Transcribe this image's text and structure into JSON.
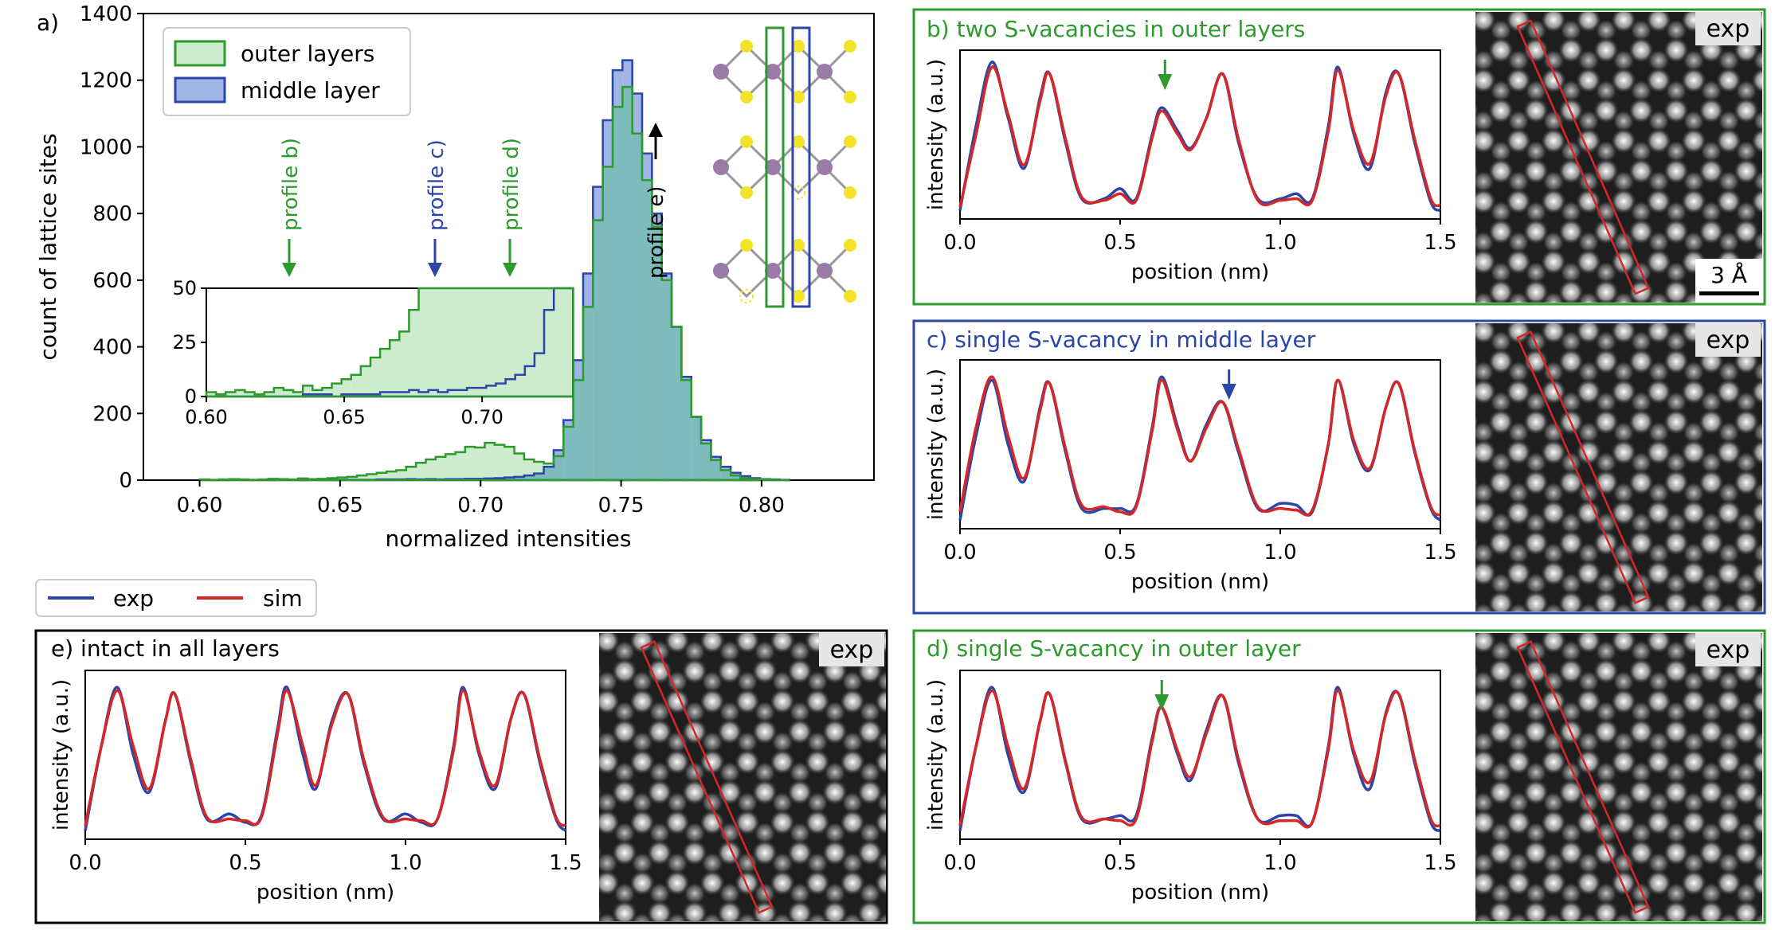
{
  "colors": {
    "outer": "#2e9a2e",
    "outer_fill": "#cdeccd",
    "middle": "#2b45a8",
    "middle_fill": "#9fb5e3",
    "overlap_fill": "#6fb3b8",
    "exp_line": "#2b45a8",
    "sim_line": "#d62728",
    "panel_frame_green": "#2e9a2e",
    "panel_frame_blue": "#2b45a8",
    "panel_frame_black": "#000000",
    "atom_mo": "#9a7ba8",
    "atom_s": "#f2e22a",
    "rect_red": "#d62728"
  },
  "legend": {
    "exp_label": "exp",
    "sim_label": "sim"
  },
  "panel_a": {
    "panel_label": "a)",
    "xlabel": "normalized intensities",
    "ylabel": "count of lattice sites",
    "legend": [
      "outer layers",
      "middle layer"
    ],
    "annotations": [
      "profile b)",
      "profile c)",
      "profile d)",
      "profile e)"
    ],
    "inset": {
      "x_ticks": [
        "0.60",
        "0.65",
        "0.70"
      ],
      "y_ticks": [
        "0",
        "25",
        "50"
      ]
    }
  },
  "panels": {
    "b": {
      "title": "b) two S-vacancies in outer layers",
      "image_label": "exp",
      "scalebar_label": "3 Å"
    },
    "c": {
      "title": "c) single S-vacancy in middle layer",
      "image_label": "exp"
    },
    "d": {
      "title": "d) single S-vacancy in outer layer",
      "image_label": "exp"
    },
    "e": {
      "title": "e) intact in all layers",
      "image_label": "exp"
    }
  },
  "chart_data": [
    {
      "type": "bar",
      "panel": "a",
      "xlabel": "normalized intensities",
      "ylabel": "count of lattice sites",
      "xlim": [
        0.58,
        0.84
      ],
      "ylim": [
        0,
        1400
      ],
      "x_ticks": [
        "0.60",
        "0.65",
        "0.70",
        "0.75",
        "0.80"
      ],
      "y_ticks": [
        "0",
        "200",
        "400",
        "600",
        "800",
        "1000",
        "1200",
        "1400"
      ],
      "bin_width": 0.0035,
      "series": [
        {
          "name": "outer layers",
          "bin_starts": [
            0.6,
            0.6035,
            0.607,
            0.6105,
            0.614,
            0.6175,
            0.621,
            0.6245,
            0.628,
            0.6315,
            0.635,
            0.6385,
            0.642,
            0.6455,
            0.649,
            0.6525,
            0.656,
            0.6595,
            0.663,
            0.6665,
            0.67,
            0.6735,
            0.677,
            0.6805,
            0.684,
            0.6875,
            0.691,
            0.6945,
            0.698,
            0.7015,
            0.705,
            0.7085,
            0.712,
            0.7155,
            0.719,
            0.7225,
            0.726,
            0.7295,
            0.733,
            0.7365,
            0.74,
            0.7435,
            0.747,
            0.7505,
            0.754,
            0.7575,
            0.761,
            0.7645,
            0.768,
            0.7715,
            0.775,
            0.7785,
            0.782,
            0.7855,
            0.789,
            0.7925,
            0.796,
            0.7995,
            0.803,
            0.8065
          ],
          "values": [
            2,
            1,
            2,
            3,
            2,
            1,
            2,
            4,
            3,
            2,
            5,
            3,
            4,
            6,
            8,
            10,
            14,
            18,
            22,
            26,
            30,
            40,
            52,
            62,
            70,
            78,
            84,
            100,
            98,
            112,
            106,
            100,
            80,
            62,
            55,
            50,
            72,
            160,
            300,
            520,
            780,
            940,
            1120,
            1180,
            1040,
            900,
            760,
            600,
            460,
            300,
            190,
            110,
            60,
            30,
            14,
            6,
            3,
            2,
            1,
            0
          ]
        },
        {
          "name": "middle layer",
          "bin_starts": [
            0.6,
            0.6035,
            0.607,
            0.6105,
            0.614,
            0.6175,
            0.621,
            0.6245,
            0.628,
            0.6315,
            0.635,
            0.6385,
            0.642,
            0.6455,
            0.649,
            0.6525,
            0.656,
            0.6595,
            0.663,
            0.6665,
            0.67,
            0.6735,
            0.677,
            0.6805,
            0.684,
            0.6875,
            0.691,
            0.6945,
            0.698,
            0.7015,
            0.705,
            0.7085,
            0.712,
            0.7155,
            0.719,
            0.7225,
            0.726,
            0.7295,
            0.733,
            0.7365,
            0.74,
            0.7435,
            0.747,
            0.7505,
            0.754,
            0.7575,
            0.761,
            0.7645,
            0.768,
            0.7715,
            0.775,
            0.7785,
            0.782,
            0.7855,
            0.789,
            0.7925,
            0.796,
            0.7995,
            0.803,
            0.8065
          ],
          "values": [
            0,
            0,
            0,
            0,
            0,
            0,
            0,
            0,
            0,
            0,
            1,
            1,
            1,
            0,
            1,
            1,
            1,
            1,
            2,
            2,
            2,
            3,
            2,
            3,
            2,
            3,
            3,
            4,
            4,
            5,
            6,
            8,
            10,
            14,
            20,
            40,
            90,
            180,
            360,
            620,
            880,
            1080,
            1230,
            1260,
            1160,
            980,
            800,
            620,
            460,
            310,
            190,
            120,
            70,
            40,
            22,
            12,
            6,
            3,
            2,
            1
          ]
        }
      ],
      "inset": {
        "xlim": [
          0.6,
          0.73
        ],
        "ylim": [
          0,
          50
        ]
      },
      "annotations": [
        {
          "label": "profile b)",
          "x": 0.63,
          "color": "outer"
        },
        {
          "label": "profile c)",
          "x": 0.682,
          "color": "middle"
        },
        {
          "label": "profile d)",
          "x": 0.708,
          "color": "outer"
        },
        {
          "label": "profile e)",
          "x": 0.76,
          "color": "black"
        }
      ]
    },
    {
      "type": "line",
      "panel": "b",
      "title": "b) two S-vacancies in outer layers",
      "xlabel": "position (nm)",
      "ylabel": "intensity (a.u.)",
      "xlim": [
        0,
        1.5
      ],
      "x_ticks": [
        "0.0",
        "0.5",
        "1.0",
        "1.5"
      ],
      "series": [
        {
          "name": "exp",
          "x": [
            0,
            0.05,
            0.1,
            0.15,
            0.2,
            0.25,
            0.28,
            0.33,
            0.38,
            0.45,
            0.5,
            0.55,
            0.6,
            0.63,
            0.68,
            0.72,
            0.77,
            0.82,
            0.87,
            0.93,
            1.0,
            1.05,
            1.1,
            1.15,
            1.18,
            1.23,
            1.28,
            1.33,
            1.37,
            1.42,
            1.47,
            1.5
          ],
          "y": [
            0.05,
            0.55,
            0.93,
            0.6,
            0.3,
            0.72,
            0.86,
            0.45,
            0.12,
            0.12,
            0.18,
            0.12,
            0.5,
            0.66,
            0.52,
            0.42,
            0.6,
            0.86,
            0.45,
            0.12,
            0.12,
            0.15,
            0.12,
            0.55,
            0.9,
            0.5,
            0.3,
            0.75,
            0.86,
            0.45,
            0.1,
            0.05
          ]
        },
        {
          "name": "sim",
          "x": [
            0,
            0.05,
            0.1,
            0.15,
            0.2,
            0.25,
            0.28,
            0.33,
            0.38,
            0.45,
            0.5,
            0.55,
            0.6,
            0.63,
            0.68,
            0.72,
            0.77,
            0.82,
            0.87,
            0.93,
            1.0,
            1.05,
            1.1,
            1.15,
            1.18,
            1.23,
            1.28,
            1.33,
            1.37,
            1.42,
            1.47,
            1.5
          ],
          "y": [
            0.07,
            0.5,
            0.9,
            0.62,
            0.32,
            0.7,
            0.86,
            0.47,
            0.13,
            0.11,
            0.15,
            0.11,
            0.48,
            0.64,
            0.5,
            0.41,
            0.6,
            0.86,
            0.47,
            0.11,
            0.11,
            0.12,
            0.11,
            0.52,
            0.88,
            0.52,
            0.33,
            0.73,
            0.86,
            0.47,
            0.12,
            0.08
          ]
        }
      ]
    },
    {
      "type": "line",
      "panel": "c",
      "title": "c) single S-vacancy in middle layer",
      "xlabel": "position (nm)",
      "ylabel": "intensity (a.u.)",
      "xlim": [
        0,
        1.5
      ],
      "x_ticks": [
        "0.0",
        "0.5",
        "1.0",
        "1.5"
      ],
      "series": [
        {
          "name": "exp",
          "x": [
            0,
            0.05,
            0.1,
            0.15,
            0.2,
            0.25,
            0.28,
            0.33,
            0.38,
            0.45,
            0.5,
            0.55,
            0.6,
            0.63,
            0.68,
            0.72,
            0.77,
            0.82,
            0.87,
            0.93,
            1.0,
            1.05,
            1.1,
            1.15,
            1.18,
            1.23,
            1.28,
            1.33,
            1.37,
            1.42,
            1.47,
            1.5
          ],
          "y": [
            0.05,
            0.55,
            0.88,
            0.5,
            0.28,
            0.72,
            0.86,
            0.45,
            0.12,
            0.12,
            0.12,
            0.14,
            0.6,
            0.9,
            0.6,
            0.4,
            0.62,
            0.75,
            0.45,
            0.12,
            0.15,
            0.14,
            0.1,
            0.5,
            0.88,
            0.5,
            0.35,
            0.72,
            0.86,
            0.45,
            0.12,
            0.05
          ]
        },
        {
          "name": "sim",
          "x": [
            0,
            0.05,
            0.1,
            0.15,
            0.2,
            0.25,
            0.28,
            0.33,
            0.38,
            0.45,
            0.5,
            0.55,
            0.6,
            0.63,
            0.68,
            0.72,
            0.77,
            0.82,
            0.87,
            0.93,
            1.0,
            1.05,
            1.1,
            1.15,
            1.18,
            1.23,
            1.28,
            1.33,
            1.37,
            1.42,
            1.47,
            1.5
          ],
          "y": [
            0.1,
            0.6,
            0.9,
            0.55,
            0.3,
            0.7,
            0.86,
            0.47,
            0.14,
            0.13,
            0.1,
            0.13,
            0.58,
            0.88,
            0.58,
            0.4,
            0.6,
            0.75,
            0.47,
            0.13,
            0.12,
            0.11,
            0.11,
            0.5,
            0.88,
            0.52,
            0.36,
            0.72,
            0.86,
            0.46,
            0.13,
            0.08
          ]
        }
      ]
    },
    {
      "type": "line",
      "panel": "d",
      "title": "d) single S-vacancy in outer layer",
      "xlabel": "position (nm)",
      "ylabel": "intensity (a.u.)",
      "xlim": [
        0,
        1.5
      ],
      "x_ticks": [
        "0.0",
        "0.5",
        "1.0",
        "1.5"
      ],
      "series": [
        {
          "name": "exp",
          "x": [
            0,
            0.05,
            0.1,
            0.15,
            0.2,
            0.25,
            0.28,
            0.33,
            0.38,
            0.45,
            0.5,
            0.55,
            0.6,
            0.63,
            0.68,
            0.72,
            0.77,
            0.82,
            0.87,
            0.93,
            1.0,
            1.05,
            1.1,
            1.15,
            1.18,
            1.23,
            1.28,
            1.33,
            1.37,
            1.42,
            1.47,
            1.5
          ],
          "y": [
            0.05,
            0.55,
            0.9,
            0.5,
            0.28,
            0.7,
            0.86,
            0.45,
            0.12,
            0.12,
            0.14,
            0.14,
            0.6,
            0.78,
            0.5,
            0.35,
            0.65,
            0.85,
            0.45,
            0.12,
            0.14,
            0.14,
            0.1,
            0.55,
            0.9,
            0.5,
            0.3,
            0.75,
            0.86,
            0.45,
            0.1,
            0.05
          ]
        },
        {
          "name": "sim",
          "x": [
            0,
            0.05,
            0.1,
            0.15,
            0.2,
            0.25,
            0.28,
            0.33,
            0.38,
            0.45,
            0.5,
            0.55,
            0.6,
            0.63,
            0.68,
            0.72,
            0.77,
            0.82,
            0.87,
            0.93,
            1.0,
            1.05,
            1.1,
            1.15,
            1.18,
            1.23,
            1.28,
            1.33,
            1.37,
            1.42,
            1.47,
            1.5
          ],
          "y": [
            0.08,
            0.55,
            0.88,
            0.55,
            0.3,
            0.7,
            0.86,
            0.46,
            0.13,
            0.12,
            0.11,
            0.12,
            0.58,
            0.78,
            0.52,
            0.37,
            0.63,
            0.85,
            0.47,
            0.12,
            0.11,
            0.11,
            0.1,
            0.53,
            0.88,
            0.52,
            0.34,
            0.74,
            0.86,
            0.47,
            0.12,
            0.08
          ]
        }
      ]
    },
    {
      "type": "line",
      "panel": "e",
      "title": "e) intact in all layers",
      "xlabel": "position (nm)",
      "ylabel": "intensity (a.u.)",
      "xlim": [
        0,
        1.5
      ],
      "x_ticks": [
        "0.0",
        "0.5",
        "1.0",
        "1.5"
      ],
      "series": [
        {
          "name": "exp",
          "x": [
            0,
            0.05,
            0.1,
            0.15,
            0.2,
            0.25,
            0.28,
            0.33,
            0.38,
            0.45,
            0.5,
            0.55,
            0.6,
            0.63,
            0.68,
            0.72,
            0.77,
            0.82,
            0.87,
            0.93,
            1.0,
            1.05,
            1.1,
            1.15,
            1.18,
            1.23,
            1.28,
            1.33,
            1.37,
            1.42,
            1.47,
            1.5
          ],
          "y": [
            0.05,
            0.55,
            0.9,
            0.5,
            0.28,
            0.7,
            0.86,
            0.45,
            0.12,
            0.15,
            0.1,
            0.14,
            0.65,
            0.9,
            0.5,
            0.3,
            0.7,
            0.86,
            0.45,
            0.12,
            0.15,
            0.1,
            0.12,
            0.55,
            0.9,
            0.5,
            0.3,
            0.72,
            0.86,
            0.45,
            0.12,
            0.05
          ]
        },
        {
          "name": "sim",
          "x": [
            0,
            0.05,
            0.1,
            0.15,
            0.2,
            0.25,
            0.28,
            0.33,
            0.38,
            0.45,
            0.5,
            0.55,
            0.6,
            0.63,
            0.68,
            0.72,
            0.77,
            0.82,
            0.87,
            0.93,
            1.0,
            1.05,
            1.1,
            1.15,
            1.18,
            1.23,
            1.28,
            1.33,
            1.37,
            1.42,
            1.47,
            1.5
          ],
          "y": [
            0.08,
            0.55,
            0.88,
            0.55,
            0.3,
            0.7,
            0.86,
            0.47,
            0.13,
            0.12,
            0.11,
            0.13,
            0.62,
            0.88,
            0.55,
            0.32,
            0.68,
            0.86,
            0.47,
            0.13,
            0.12,
            0.11,
            0.12,
            0.53,
            0.88,
            0.52,
            0.32,
            0.72,
            0.86,
            0.47,
            0.13,
            0.08
          ]
        }
      ]
    }
  ]
}
